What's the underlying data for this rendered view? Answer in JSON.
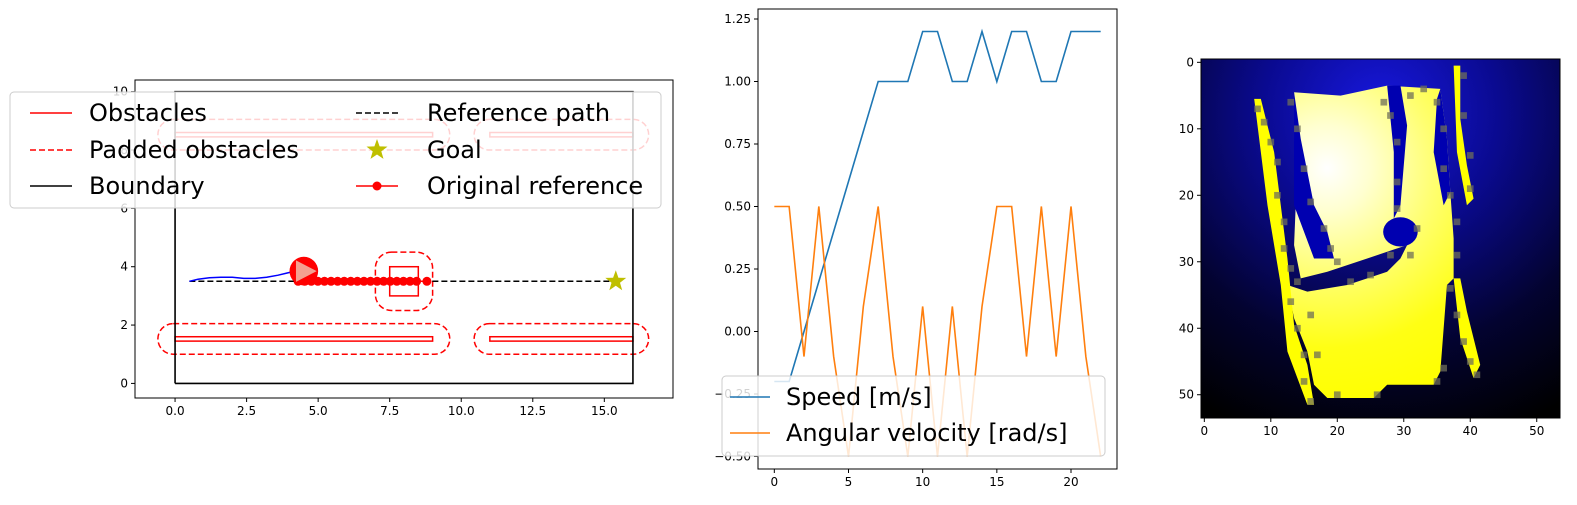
{
  "chart_data": [
    {
      "type": "line",
      "xlim": [
        -1.4,
        17.4
      ],
      "ylim": [
        -0.5,
        10.4
      ],
      "xticks": [
        "0.0",
        "2.5",
        "5.0",
        "7.5",
        "10.0",
        "12.5",
        "15.0"
      ],
      "yticks": [
        "0",
        "2",
        "4",
        "6",
        "8",
        "10"
      ],
      "legend": {
        "placement": "upper-center",
        "entries": [
          "Obstacles",
          "Padded obstacles",
          "Boundary",
          "Reference path",
          "Goal",
          "Original reference"
        ]
      },
      "boundary": [
        [
          0,
          0
        ],
        [
          16,
          0
        ],
        [
          16,
          10
        ],
        [
          0,
          10
        ],
        [
          0,
          0
        ]
      ],
      "obstacles": [
        {
          "x0": 0,
          "x1": 9.0,
          "y0": 1.45,
          "y1": 1.6
        },
        {
          "x0": 11.0,
          "x1": 16.0,
          "y0": 1.45,
          "y1": 1.6
        },
        {
          "x0": 0,
          "x1": 9.0,
          "y0": 8.45,
          "y1": 8.6
        },
        {
          "x0": 11.0,
          "x1": 16.0,
          "y0": 8.45,
          "y1": 8.6
        },
        {
          "x0": 7.5,
          "x1": 8.5,
          "y0": 3.0,
          "y1": 4.0
        }
      ],
      "padded_obstacles": [
        {
          "x0": -0.6,
          "x1": 9.6,
          "y0": 1.0,
          "y1": 2.05
        },
        {
          "x0": 10.45,
          "x1": 16.55,
          "y0": 1.0,
          "y1": 2.05
        },
        {
          "x0": -0.6,
          "x1": 9.6,
          "y0": 8.0,
          "y1": 9.05
        },
        {
          "x0": 10.45,
          "x1": 16.55,
          "y0": 8.0,
          "y1": 9.05
        },
        {
          "x0": 7.0,
          "x1": 9.0,
          "y0": 2.5,
          "y1": 4.5
        }
      ],
      "reference_path": {
        "x": [
          0.5,
          15.4
        ],
        "y": [
          3.5,
          3.5
        ]
      },
      "goal": {
        "x": 15.4,
        "y": 3.5
      },
      "original_reference": {
        "x": [
          4.3,
          4.53,
          4.76,
          4.99,
          5.22,
          5.45,
          5.68,
          5.91,
          6.14,
          6.37,
          6.6,
          6.83,
          7.06,
          7.29,
          7.52,
          7.75,
          7.98,
          8.21,
          8.44,
          8.8
        ],
        "y": [
          3.5,
          3.5,
          3.5,
          3.5,
          3.5,
          3.5,
          3.5,
          3.5,
          3.5,
          3.5,
          3.5,
          3.5,
          3.5,
          3.5,
          3.5,
          3.5,
          3.5,
          3.5,
          3.5,
          3.5
        ]
      },
      "trajectory": {
        "x": [
          0.5,
          0.8,
          1.2,
          1.6,
          2.0,
          2.4,
          2.8,
          3.2,
          3.6,
          3.9,
          4.2
        ],
        "y": [
          3.5,
          3.57,
          3.62,
          3.64,
          3.64,
          3.6,
          3.6,
          3.64,
          3.71,
          3.78,
          3.85
        ]
      },
      "robot": {
        "x": 4.5,
        "y": 3.85,
        "radius": 0.5,
        "heading_deg": 0
      }
    },
    {
      "type": "line",
      "xlim": [
        -1.1,
        23.1
      ],
      "ylim": [
        -0.55,
        1.29
      ],
      "xticks": [
        0,
        5,
        10,
        15,
        20
      ],
      "yticks": [
        "−0.50",
        "−0.25",
        "0.00",
        "0.25",
        "0.50",
        "0.75",
        "1.00",
        "1.25"
      ],
      "legend": {
        "placement": "lower-center"
      },
      "x": [
        0,
        1,
        2,
        3,
        4,
        5,
        6,
        7,
        8,
        9,
        10,
        11,
        12,
        13,
        14,
        15,
        16,
        17,
        18,
        19,
        20,
        21,
        22
      ],
      "series": [
        {
          "name": "Speed [m/s]",
          "color": "#1f77b4",
          "values": [
            -0.2,
            -0.2,
            0.0,
            0.2,
            0.4,
            0.6,
            0.8,
            1.0,
            1.0,
            1.0,
            1.2,
            1.2,
            1.0,
            1.0,
            1.2,
            1.0,
            1.2,
            1.2,
            1.0,
            1.0,
            1.2,
            1.2,
            1.2
          ]
        },
        {
          "name": "Angular velocity [rad/s]",
          "color": "#ff7f0e",
          "values": [
            0.5,
            0.5,
            -0.1,
            0.5,
            -0.1,
            -0.5,
            0.1,
            0.5,
            -0.1,
            -0.5,
            0.1,
            -0.5,
            0.1,
            -0.5,
            0.1,
            0.5,
            0.5,
            -0.1,
            0.5,
            -0.1,
            0.5,
            -0.1,
            -0.5
          ]
        }
      ]
    },
    {
      "type": "heatmap",
      "xlim": [
        -0.5,
        53.5
      ],
      "ylim": [
        53.5,
        -0.5
      ],
      "xticks": [
        0,
        10,
        20,
        30,
        40,
        50
      ],
      "yticks": [
        0,
        10,
        20,
        30,
        40,
        50
      ],
      "colors": {
        "free": "#ffff00",
        "highlight": "#ffffd8",
        "blocked": "#0000b0",
        "background": "#000000"
      }
    }
  ]
}
